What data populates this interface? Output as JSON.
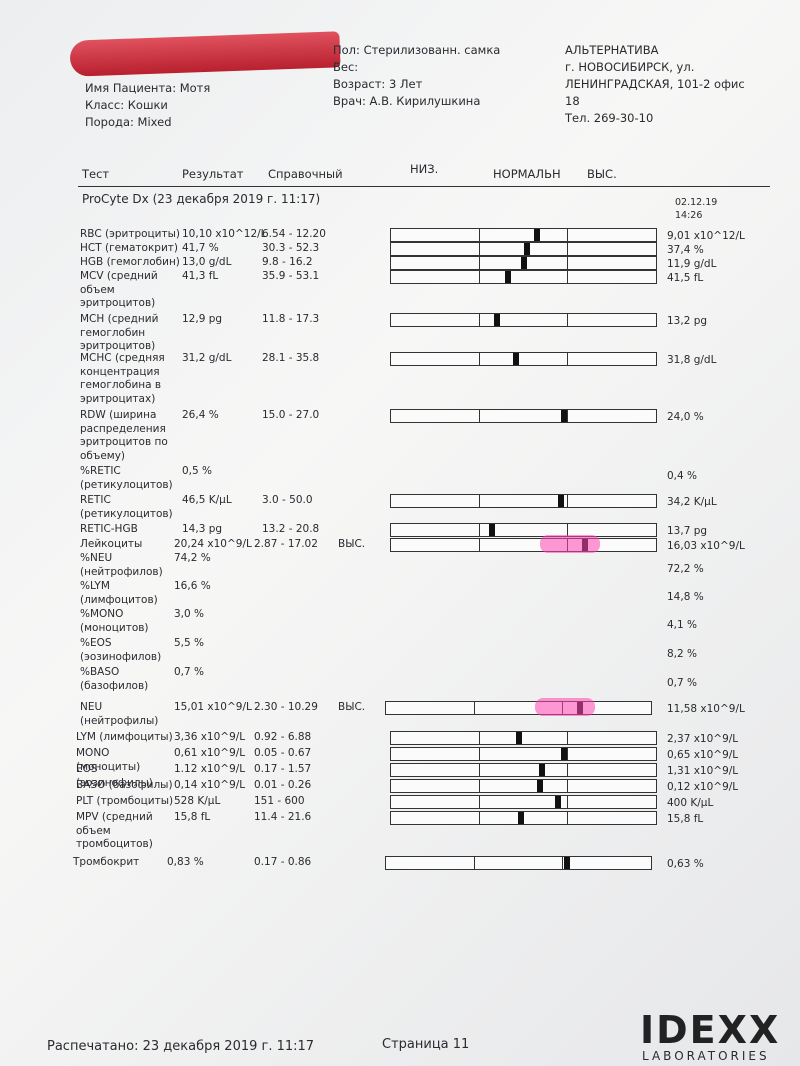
{
  "header": {
    "patient": [
      "Имя Пациента: Мотя",
      "Класс: Кошки",
      "Порода: Mixed"
    ],
    "info": [
      "Пол: Стерилизованн. самка",
      "Вес:",
      "Возраст: 3 Лет",
      "Врач: А.В. Кирилушкина"
    ],
    "clinic": [
      "АЛЬТЕРНАТИВА",
      "г. НОВОСИБИРСК, ул.",
      "ЛЕНИНГРАДСКАЯ, 101-2 офис",
      "18",
      "Тел. 269-30-10"
    ]
  },
  "columns": {
    "test": "Тест",
    "result": "Результат",
    "range": "Справочный",
    "low": "НИЗ.",
    "normal": "НОРМАЛЬН",
    "high": "ВЫС."
  },
  "section": {
    "title": "ProCyte Dx (23 декабря 2019 г. 11:17)",
    "prev_date": "02.12.19",
    "prev_time": "14:26"
  },
  "table": {
    "rows": [
      {
        "test": "RBC (эритроциты)",
        "result": "10,10 x10^12/L",
        "range": "6.54 - 12.20",
        "previous": "9,01 x10^12/L"
      },
      {
        "test": "HCT (гематокрит)",
        "result": "41,7 %",
        "range": "30.3 - 52.3",
        "previous": "37,4 %"
      },
      {
        "test": "HGB (гемоглобин)",
        "result": "13,0 g/dL",
        "range": "9.8 - 16.2",
        "previous": "11,9 g/dL"
      },
      {
        "test": "MCV (средний объем эритроцитов)",
        "result": "41,3 fL",
        "range": "35.9 - 53.1",
        "previous": "41,5 fL"
      },
      {
        "test": "MCH (средний гемоглобин эритроцитов)",
        "result": "12,9 pg",
        "range": "11.8 - 17.3",
        "previous": "13,2 pg"
      },
      {
        "test": "MCHC (средняя концентрация гемоглобина в эритроцитах)",
        "result": "31,2 g/dL",
        "range": "28.1 - 35.8",
        "previous": "31,8 g/dL"
      },
      {
        "test": "RDW (ширина распределения эритроцитов по объему)",
        "result": "26,4 %",
        "range": "15.0 - 27.0",
        "previous": "24,0 %"
      },
      {
        "test": "%RETIC (ретикулоцитов)",
        "result": "0,5 %",
        "previous": "0,4 %"
      },
      {
        "test": "RETIC (ретикулоцитов)",
        "result": "46,5 K/µL",
        "range": "3.0 - 50.0",
        "previous": "34,2 K/µL"
      },
      {
        "test": "RETIC-HGB",
        "result": "14,3 pg",
        "range": "13.2 - 20.8",
        "previous": "13,7 pg"
      },
      {
        "test": "Лейкоциты",
        "result": "20,24 x10^9/L",
        "range": "2.87 - 17.02",
        "flag": "ВЫС.",
        "previous": "16,03 x10^9/L"
      },
      {
        "test": "%NEU (нейтрофилов)",
        "result": "74,2 %",
        "previous": "72,2 %"
      },
      {
        "test": "%LYM (лимфоцитов)",
        "result": "16,6 %",
        "previous": "14,8 %"
      },
      {
        "test": "%MONO (моноцитов)",
        "result": "3,0 %",
        "previous": "4,1 %"
      },
      {
        "test": "%EOS (эозинофилов)",
        "result": "5,5 %",
        "previous": "8,2 %"
      },
      {
        "test": "%BASO (базофилов)",
        "result": "0,7 %",
        "previous": "0,7 %"
      },
      {
        "test": "NEU (нейтрофилы)",
        "result": "15,01 x10^9/L",
        "range": "2.30 - 10.29",
        "flag": "ВЫС.",
        "previous": "11,58 x10^9/L"
      },
      {
        "test": "LYM (лимфоциты)",
        "result": "3,36 x10^9/L",
        "range": "0.92 - 6.88",
        "previous": "2,37 x10^9/L"
      },
      {
        "test": "MONO (моноциты)",
        "result": "0,61 x10^9/L",
        "range": "0.05 - 0.67",
        "previous": "0,65 x10^9/L"
      },
      {
        "test": "EOS (эозинофилы)",
        "result": "1.12 x10^9/L",
        "range": "0.17 - 1.57",
        "previous": "1,31 x10^9/L"
      },
      {
        "test": "BASO (базофилы)",
        "result": "0,14 x10^9/L",
        "range": "0.01 - 0.26",
        "previous": "0,12 x10^9/L"
      },
      {
        "test": "PLT (тромбоциты)",
        "result": "528 K/µL",
        "range": "151 - 600",
        "previous": "400 K/µL"
      },
      {
        "test": "MPV (средний объем тромбоцитов)",
        "result": "15,8 fL",
        "range": "11.4 - 21.6",
        "previous": "15,8 fL"
      },
      {
        "test": "Тромбокрит",
        "result": "0,83 %",
        "range": "0.17 - 0.86",
        "previous": "0,63 %"
      }
    ]
  },
  "footer": {
    "printed": "Распечатано: 23 декабря 2019 г. 11:17",
    "page": "Страница 11",
    "logo": "IDEXX",
    "logo_sub": "LABORATORIES"
  }
}
